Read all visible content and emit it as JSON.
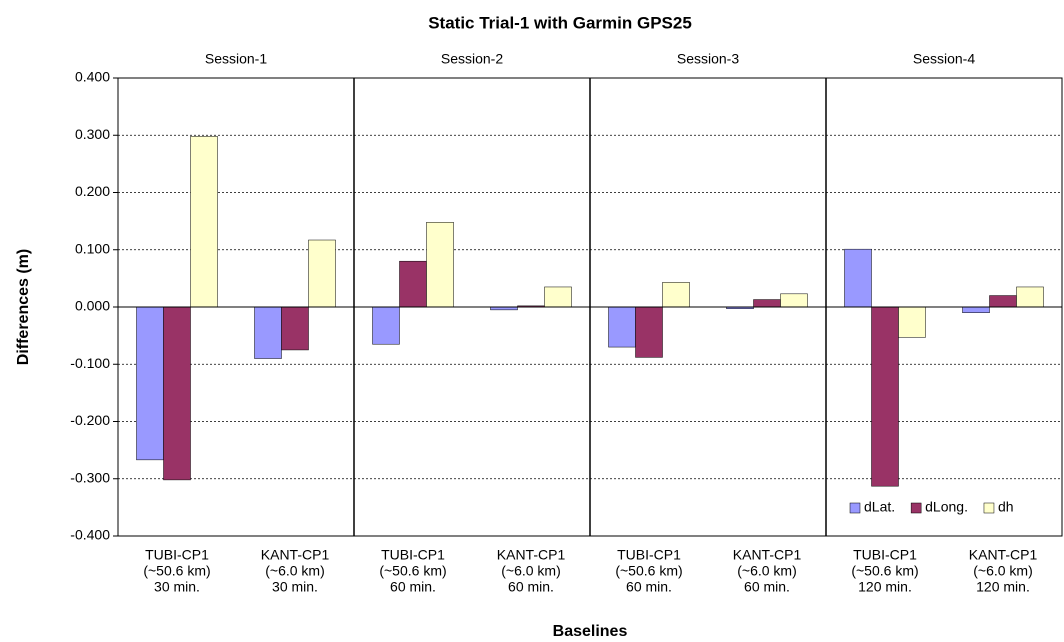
{
  "chart_data": {
    "type": "bar",
    "title": "Static Trial-1 with Garmin GPS25",
    "y_label": "Differences (m)",
    "x_label": "Baselines",
    "sessions": [
      "Session-1",
      "Session-2",
      "Session-3",
      "Session-4"
    ],
    "categories": [
      [
        "TUBI-CP1",
        "(~50.6 km)",
        "30 min."
      ],
      [
        "KANT-CP1",
        "(~6.0 km)",
        "30 min."
      ],
      [
        "TUBI-CP1",
        "(~50.6 km)",
        "60 min."
      ],
      [
        "KANT-CP1",
        "(~6.0 km)",
        "60 min."
      ],
      [
        "TUBI-CP1",
        "(~50.6 km)",
        "60 min."
      ],
      [
        "KANT-CP1",
        "(~6.0 km)",
        "60 min."
      ],
      [
        "TUBI-CP1",
        "(~50.6 km)",
        "120 min."
      ],
      [
        "KANT-CP1",
        "(~6.0 km)",
        "120 min."
      ]
    ],
    "series": [
      {
        "name": "dLat.",
        "color": "#9999ff",
        "values": [
          -0.267,
          -0.09,
          -0.065,
          -0.005,
          -0.07,
          -0.003,
          0.101,
          -0.01
        ]
      },
      {
        "name": "dLong.",
        "color": "#993366",
        "values": [
          -0.302,
          -0.075,
          0.08,
          0.002,
          -0.088,
          0.013,
          -0.313,
          0.02
        ]
      },
      {
        "name": "dh",
        "color": "#ffffcc",
        "values": [
          0.298,
          0.117,
          0.148,
          0.035,
          0.043,
          0.023,
          -0.053,
          0.035
        ]
      }
    ],
    "ylim": [
      -0.4,
      0.4
    ],
    "yticks": [
      {
        "value": -0.4,
        "label": "-0.400"
      },
      {
        "value": -0.3,
        "label": "-0.300"
      },
      {
        "value": -0.2,
        "label": "-0.200"
      },
      {
        "value": -0.1,
        "label": "-0.100"
      },
      {
        "value": 0,
        "label": "0.000"
      },
      {
        "value": 0.1,
        "label": "0.100"
      },
      {
        "value": 0.2,
        "label": "0.200"
      },
      {
        "value": 0.3,
        "label": "0.300"
      },
      {
        "value": 0.4,
        "label": "0.400"
      }
    ],
    "grid": true,
    "legend_position": "lower right"
  }
}
